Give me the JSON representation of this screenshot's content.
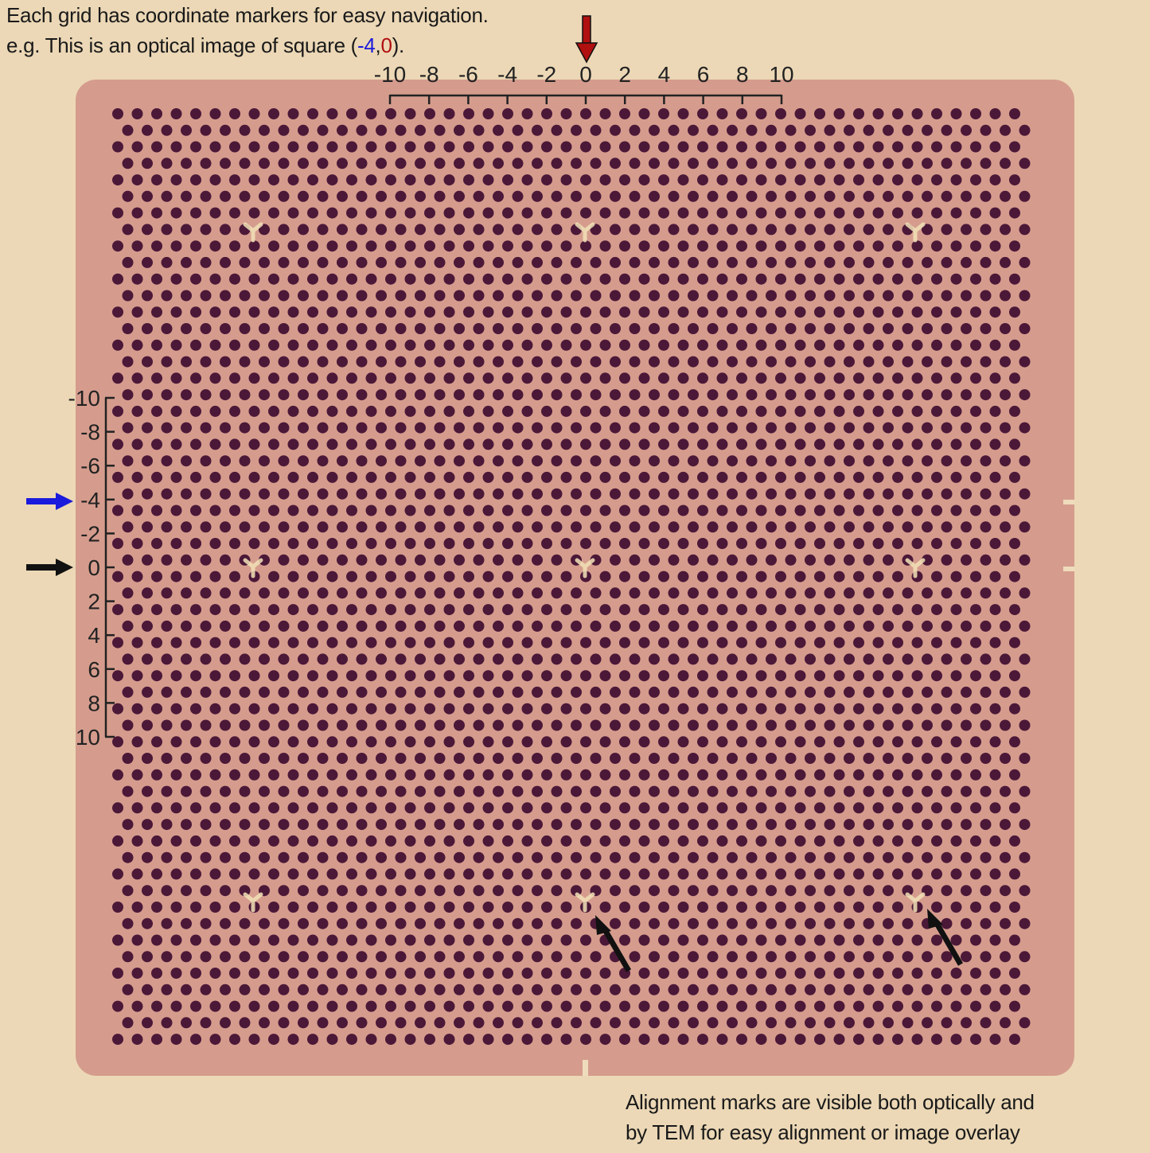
{
  "caption_top": {
    "line1": "Each grid has coordinate markers for easy navigation.",
    "line2_prefix": "e.g. This is an optical image of square (",
    "line2_x": "-4",
    "line2_sep": ",",
    "line2_y": "0",
    "line2_suffix": ")."
  },
  "caption_bottom": {
    "line1": "Alignment marks are visible both optically and",
    "line2": "by TEM for easy alignment or image overlay"
  },
  "top_axis": {
    "ticks": [
      "-10",
      "-8",
      "-6",
      "-4",
      "-2",
      "0",
      "2",
      "4",
      "6",
      "8",
      "10"
    ]
  },
  "left_axis": {
    "ticks": [
      "-10",
      "-8",
      "-6",
      "-4",
      "-2",
      "0",
      "2",
      "4",
      "6",
      "8",
      "10"
    ]
  },
  "colors": {
    "background": "#ecd8b6",
    "membrane": "#d59c8d",
    "hole": "#4b1838",
    "alignment_mark": "#f2e2b8",
    "x_highlight": "#1a1adc",
    "y_highlight": "#b01010",
    "red_arrow": "#b01010",
    "blue_arrow": "#1a1adc",
    "black_arrow": "#111111"
  }
}
